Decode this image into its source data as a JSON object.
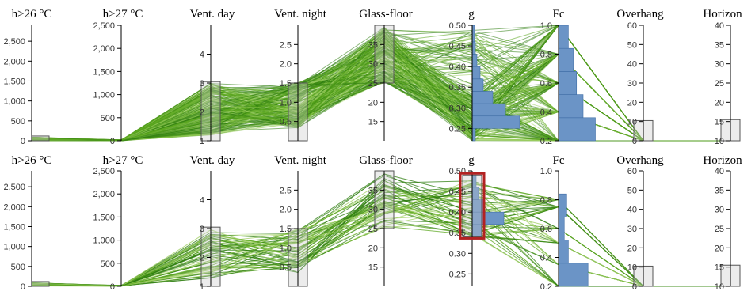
{
  "colors": {
    "line_dark": "#2e7d0f",
    "line_mid": "#5aa51e",
    "line_light": "#9fcf62",
    "hist_fill": "#6b94c6",
    "hist_stroke": "#3f6da5",
    "brush_fill": "rgba(200,200,200,0.35)",
    "brush_stroke": "#555555",
    "highlight": "#b22222"
  },
  "chart_data": [
    {
      "type": "parallel-coordinates",
      "axes": [
        {
          "key": "h26",
          "label": "h>26 °C",
          "range": [
            0,
            2900
          ],
          "ticks": [
            0,
            500,
            1000,
            1500,
            2000,
            2500
          ],
          "tick_labels": [
            "0",
            "500",
            "1,000",
            "1,500",
            "2,000",
            "2,500"
          ],
          "brush": [
            0,
            120
          ]
        },
        {
          "key": "h27",
          "label": "h>27 °C",
          "range": [
            0,
            2500
          ],
          "ticks": [
            0,
            500,
            1000,
            1500,
            2000,
            2500
          ],
          "tick_labels": [
            "0",
            "500",
            "1,000",
            "1,500",
            "2,000",
            "2,500"
          ]
        },
        {
          "key": "vday",
          "label": "Vent. day",
          "range": [
            1,
            5
          ],
          "ticks": [
            1,
            2,
            3,
            4
          ],
          "tick_labels": [
            "1",
            "2",
            "3",
            "4"
          ],
          "brush": [
            1,
            3.05
          ]
        },
        {
          "key": "vnight",
          "label": "Vent. night",
          "range": [
            0,
            3
          ],
          "ticks": [
            0.5,
            1,
            1.5,
            2,
            2.5
          ],
          "tick_labels": [
            "0.5",
            "1.0",
            "1.5",
            "2.0",
            "2.5"
          ],
          "brush": [
            0,
            1.5
          ]
        },
        {
          "key": "glass",
          "label": "Glass-floor",
          "range": [
            10,
            40
          ],
          "ticks": [
            15,
            20,
            25,
            30,
            35
          ],
          "tick_labels": [
            "15",
            "20",
            "25",
            "30",
            "35"
          ],
          "brush": [
            25,
            40
          ]
        },
        {
          "key": "g",
          "label": "g",
          "range": [
            0.22,
            0.5
          ],
          "ticks": [
            0.25,
            0.3,
            0.35,
            0.4,
            0.45,
            0.5
          ],
          "tick_labels": [
            "0.25",
            "0.30",
            "0.35",
            "0.40",
            "0.45",
            "0.50"
          ],
          "histogram": {
            "bins": [
              [
                0.22,
                0.25,
                0.04
              ],
              [
                0.25,
                0.28,
                0.6
              ],
              [
                0.28,
                0.31,
                0.42
              ],
              [
                0.31,
                0.34,
                0.26
              ],
              [
                0.34,
                0.37,
                0.14
              ],
              [
                0.37,
                0.4,
                0.1
              ],
              [
                0.4,
                0.43,
                0.06
              ],
              [
                0.43,
                0.46,
                0.04
              ],
              [
                0.46,
                0.5,
                0.03
              ]
            ]
          }
        },
        {
          "key": "fc",
          "label": "Fc",
          "range": [
            0.2,
            1
          ],
          "ticks": [
            0.2,
            0.4,
            0.6,
            0.8,
            1
          ],
          "tick_labels": [
            "0.2",
            "0.4",
            "0.6",
            "0.8",
            "1.0"
          ],
          "histogram": {
            "bins": [
              [
                0.2,
                0.36,
                0.45
              ],
              [
                0.36,
                0.52,
                0.3
              ],
              [
                0.52,
                0.68,
                0.22
              ],
              [
                0.68,
                0.84,
                0.18
              ],
              [
                0.84,
                1.0,
                0.12
              ]
            ]
          }
        },
        {
          "key": "overhang",
          "label": "Overhang",
          "range": [
            0,
            60
          ],
          "ticks": [
            0,
            10,
            20,
            30,
            40,
            50,
            60
          ],
          "tick_labels": [
            "0",
            "10",
            "20",
            "30",
            "40",
            "50",
            "60"
          ],
          "brush": [
            0,
            10.5
          ]
        },
        {
          "key": "horizon",
          "label": "Horizon",
          "range": [
            10,
            40
          ],
          "ticks": [
            10,
            15,
            20,
            25,
            30,
            35,
            40
          ],
          "tick_labels": [
            "10",
            "15",
            "20",
            "25",
            "30",
            "35",
            "40"
          ],
          "brush": [
            10,
            15.5
          ]
        }
      ],
      "samples": 230,
      "seed": 7
    },
    {
      "type": "parallel-coordinates",
      "axes": [
        {
          "key": "h26",
          "label": "h>26 °C",
          "range": [
            0,
            2900
          ],
          "ticks": [
            0,
            500,
            1000,
            1500,
            2000,
            2500
          ],
          "tick_labels": [
            "0",
            "500",
            "1,000",
            "1,500",
            "2,000",
            "2,500"
          ],
          "brush": [
            0,
            120
          ]
        },
        {
          "key": "h27",
          "label": "h>27 °C",
          "range": [
            0,
            2500
          ],
          "ticks": [
            0,
            500,
            1000,
            1500,
            2000,
            2500
          ],
          "tick_labels": [
            "0",
            "500",
            "1,000",
            "1,500",
            "2,000",
            "2,500"
          ]
        },
        {
          "key": "vday",
          "label": "Vent. day",
          "range": [
            1,
            5
          ],
          "ticks": [
            1,
            2,
            3,
            4
          ],
          "tick_labels": [
            "1",
            "2",
            "3",
            "4"
          ],
          "brush": [
            1,
            3.05
          ]
        },
        {
          "key": "vnight",
          "label": "Vent. night",
          "range": [
            0,
            3
          ],
          "ticks": [
            0.5,
            1,
            1.5,
            2,
            2.5
          ],
          "tick_labels": [
            "0.5",
            "1.0",
            "1.5",
            "2.0",
            "2.5"
          ],
          "brush": [
            0,
            1.5
          ]
        },
        {
          "key": "glass",
          "label": "Glass-floor",
          "range": [
            10,
            40
          ],
          "ticks": [
            15,
            20,
            25,
            30,
            35
          ],
          "tick_labels": [
            "15",
            "20",
            "25",
            "30",
            "35"
          ],
          "brush": [
            25,
            40
          ]
        },
        {
          "key": "g",
          "label": "g",
          "range": [
            0.22,
            0.5
          ],
          "ticks": [
            0.25,
            0.3,
            0.35,
            0.4,
            0.45,
            0.5
          ],
          "tick_labels": [
            "0.25",
            "0.30",
            "0.35",
            "0.40",
            "0.45",
            "0.50"
          ],
          "brush": [
            0.34,
            0.49
          ],
          "highlight": [
            0.34,
            0.49
          ],
          "histogram": {
            "bins": [
              [
                0.34,
                0.37,
                0.12
              ],
              [
                0.37,
                0.4,
                0.4
              ],
              [
                0.4,
                0.43,
                0.15
              ],
              [
                0.43,
                0.46,
                0.08
              ],
              [
                0.46,
                0.49,
                0.05
              ]
            ]
          }
        },
        {
          "key": "fc",
          "label": "Fc",
          "range": [
            0.2,
            1
          ],
          "ticks": [
            0.2,
            0.4,
            0.6,
            0.8,
            1
          ],
          "tick_labels": [
            "0.2",
            "0.4",
            "0.6",
            "0.8",
            "1.0"
          ],
          "histogram": {
            "bins": [
              [
                0.2,
                0.36,
                0.36
              ],
              [
                0.36,
                0.52,
                0.12
              ],
              [
                0.52,
                0.68,
                0.07
              ],
              [
                0.68,
                0.84,
                0.1
              ]
            ]
          }
        },
        {
          "key": "overhang",
          "label": "Overhang",
          "range": [
            0,
            60
          ],
          "ticks": [
            0,
            10,
            20,
            30,
            40,
            50,
            60
          ],
          "tick_labels": [
            "0",
            "10",
            "20",
            "30",
            "40",
            "50",
            "60"
          ],
          "brush": [
            0,
            10.5
          ]
        },
        {
          "key": "horizon",
          "label": "Horizon",
          "range": [
            10,
            40
          ],
          "ticks": [
            10,
            15,
            20,
            25,
            30,
            35,
            40
          ],
          "tick_labels": [
            "10",
            "15",
            "20",
            "25",
            "30",
            "35",
            "40"
          ],
          "brush": [
            10,
            15.5
          ]
        }
      ],
      "samples": 55,
      "seed": 42
    }
  ]
}
